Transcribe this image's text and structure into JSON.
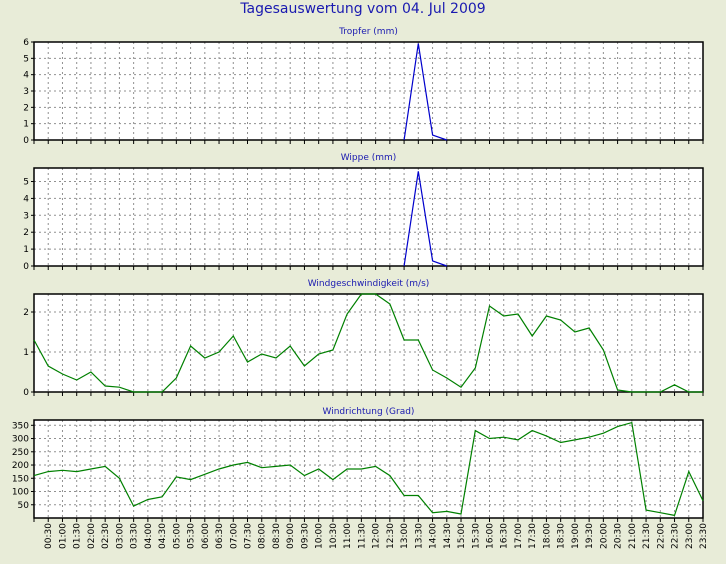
{
  "page": {
    "title": "Tagesauswertung vom 04. Jul 2009"
  },
  "chart_data": [
    {
      "type": "line",
      "title": "Tropfer (mm)",
      "color": "#0000cc",
      "ylim": [
        0,
        6
      ],
      "yticks": [
        0,
        1,
        2,
        3,
        4,
        5,
        6
      ],
      "x_range": [
        0,
        47
      ],
      "x": [
        26,
        27,
        28,
        29
      ],
      "y": [
        0,
        5.9,
        0.3,
        0
      ]
    },
    {
      "type": "line",
      "title": "Wippe (mm)",
      "color": "#0000cc",
      "ylim": [
        0,
        5.8
      ],
      "yticks": [
        0,
        1,
        2,
        3,
        4,
        5
      ],
      "x_range": [
        0,
        47
      ],
      "x": [
        26,
        27,
        28,
        29
      ],
      "y": [
        0,
        5.6,
        0.3,
        0
      ]
    },
    {
      "type": "line",
      "title": "Windgeschwindigkeit (m/s)",
      "color": "#008000",
      "ylim": [
        0,
        2.45
      ],
      "yticks": [
        0,
        1,
        2
      ],
      "x_range": [
        0,
        47
      ],
      "x": [
        0,
        1,
        2,
        3,
        4,
        5,
        6,
        7,
        8,
        9,
        10,
        11,
        12,
        13,
        14,
        15,
        16,
        17,
        18,
        19,
        20,
        21,
        22,
        23,
        24,
        25,
        26,
        27,
        28,
        29,
        30,
        31,
        32,
        33,
        34,
        35,
        36,
        37,
        38,
        39,
        40,
        41,
        42,
        43,
        44,
        45,
        46,
        47
      ],
      "y": [
        1.3,
        0.65,
        0.45,
        0.3,
        0.5,
        0.15,
        0.12,
        0,
        0,
        0,
        0.35,
        1.15,
        0.85,
        1.0,
        1.4,
        0.75,
        0.95,
        0.85,
        1.15,
        0.65,
        0.95,
        1.05,
        1.95,
        2.45,
        2.45,
        2.2,
        1.3,
        1.3,
        0.55,
        0.35,
        0.12,
        0.6,
        2.15,
        1.9,
        1.95,
        1.4,
        1.9,
        1.8,
        1.5,
        1.6,
        1.05,
        0.05,
        0,
        0,
        0,
        0.18,
        0,
        0
      ]
    },
    {
      "type": "line",
      "title": "Windrichtung (Grad)",
      "color": "#008000",
      "ylim": [
        0,
        370
      ],
      "yticks": [
        50,
        100,
        150,
        200,
        250,
        300,
        350
      ],
      "x_range": [
        0,
        47
      ],
      "x": [
        0,
        1,
        2,
        3,
        4,
        5,
        6,
        7,
        8,
        9,
        10,
        11,
        12,
        13,
        14,
        15,
        16,
        17,
        18,
        19,
        20,
        21,
        22,
        23,
        24,
        25,
        26,
        27,
        28,
        29,
        30,
        31,
        32,
        33,
        34,
        35,
        36,
        37,
        38,
        39,
        40,
        41,
        42,
        43,
        44,
        45,
        46,
        47
      ],
      "y": [
        160,
        175,
        180,
        175,
        185,
        195,
        150,
        45,
        70,
        80,
        155,
        145,
        165,
        185,
        200,
        210,
        190,
        195,
        200,
        160,
        185,
        145,
        185,
        185,
        195,
        160,
        85,
        85,
        20,
        25,
        15,
        330,
        300,
        305,
        295,
        330,
        310,
        285,
        295,
        305,
        320,
        345,
        360,
        30,
        20,
        10,
        175,
        65
      ]
    }
  ],
  "x_tick_labels": [
    "00:30",
    "01:00",
    "01:30",
    "02:00",
    "02:30",
    "03:00",
    "03:30",
    "04:00",
    "04:30",
    "05:00",
    "05:30",
    "06:00",
    "06:30",
    "07:00",
    "07:30",
    "08:00",
    "08:30",
    "09:00",
    "09:30",
    "10:00",
    "10:30",
    "11:00",
    "11:30",
    "12:00",
    "12:30",
    "13:00",
    "13:30",
    "14:00",
    "14:30",
    "15:00",
    "15:30",
    "16:00",
    "16:30",
    "17:00",
    "17:30",
    "18:00",
    "18:30",
    "19:00",
    "19:30",
    "20:00",
    "20:30",
    "21:00",
    "21:30",
    "22:00",
    "22:30",
    "23:00",
    "23:30"
  ]
}
